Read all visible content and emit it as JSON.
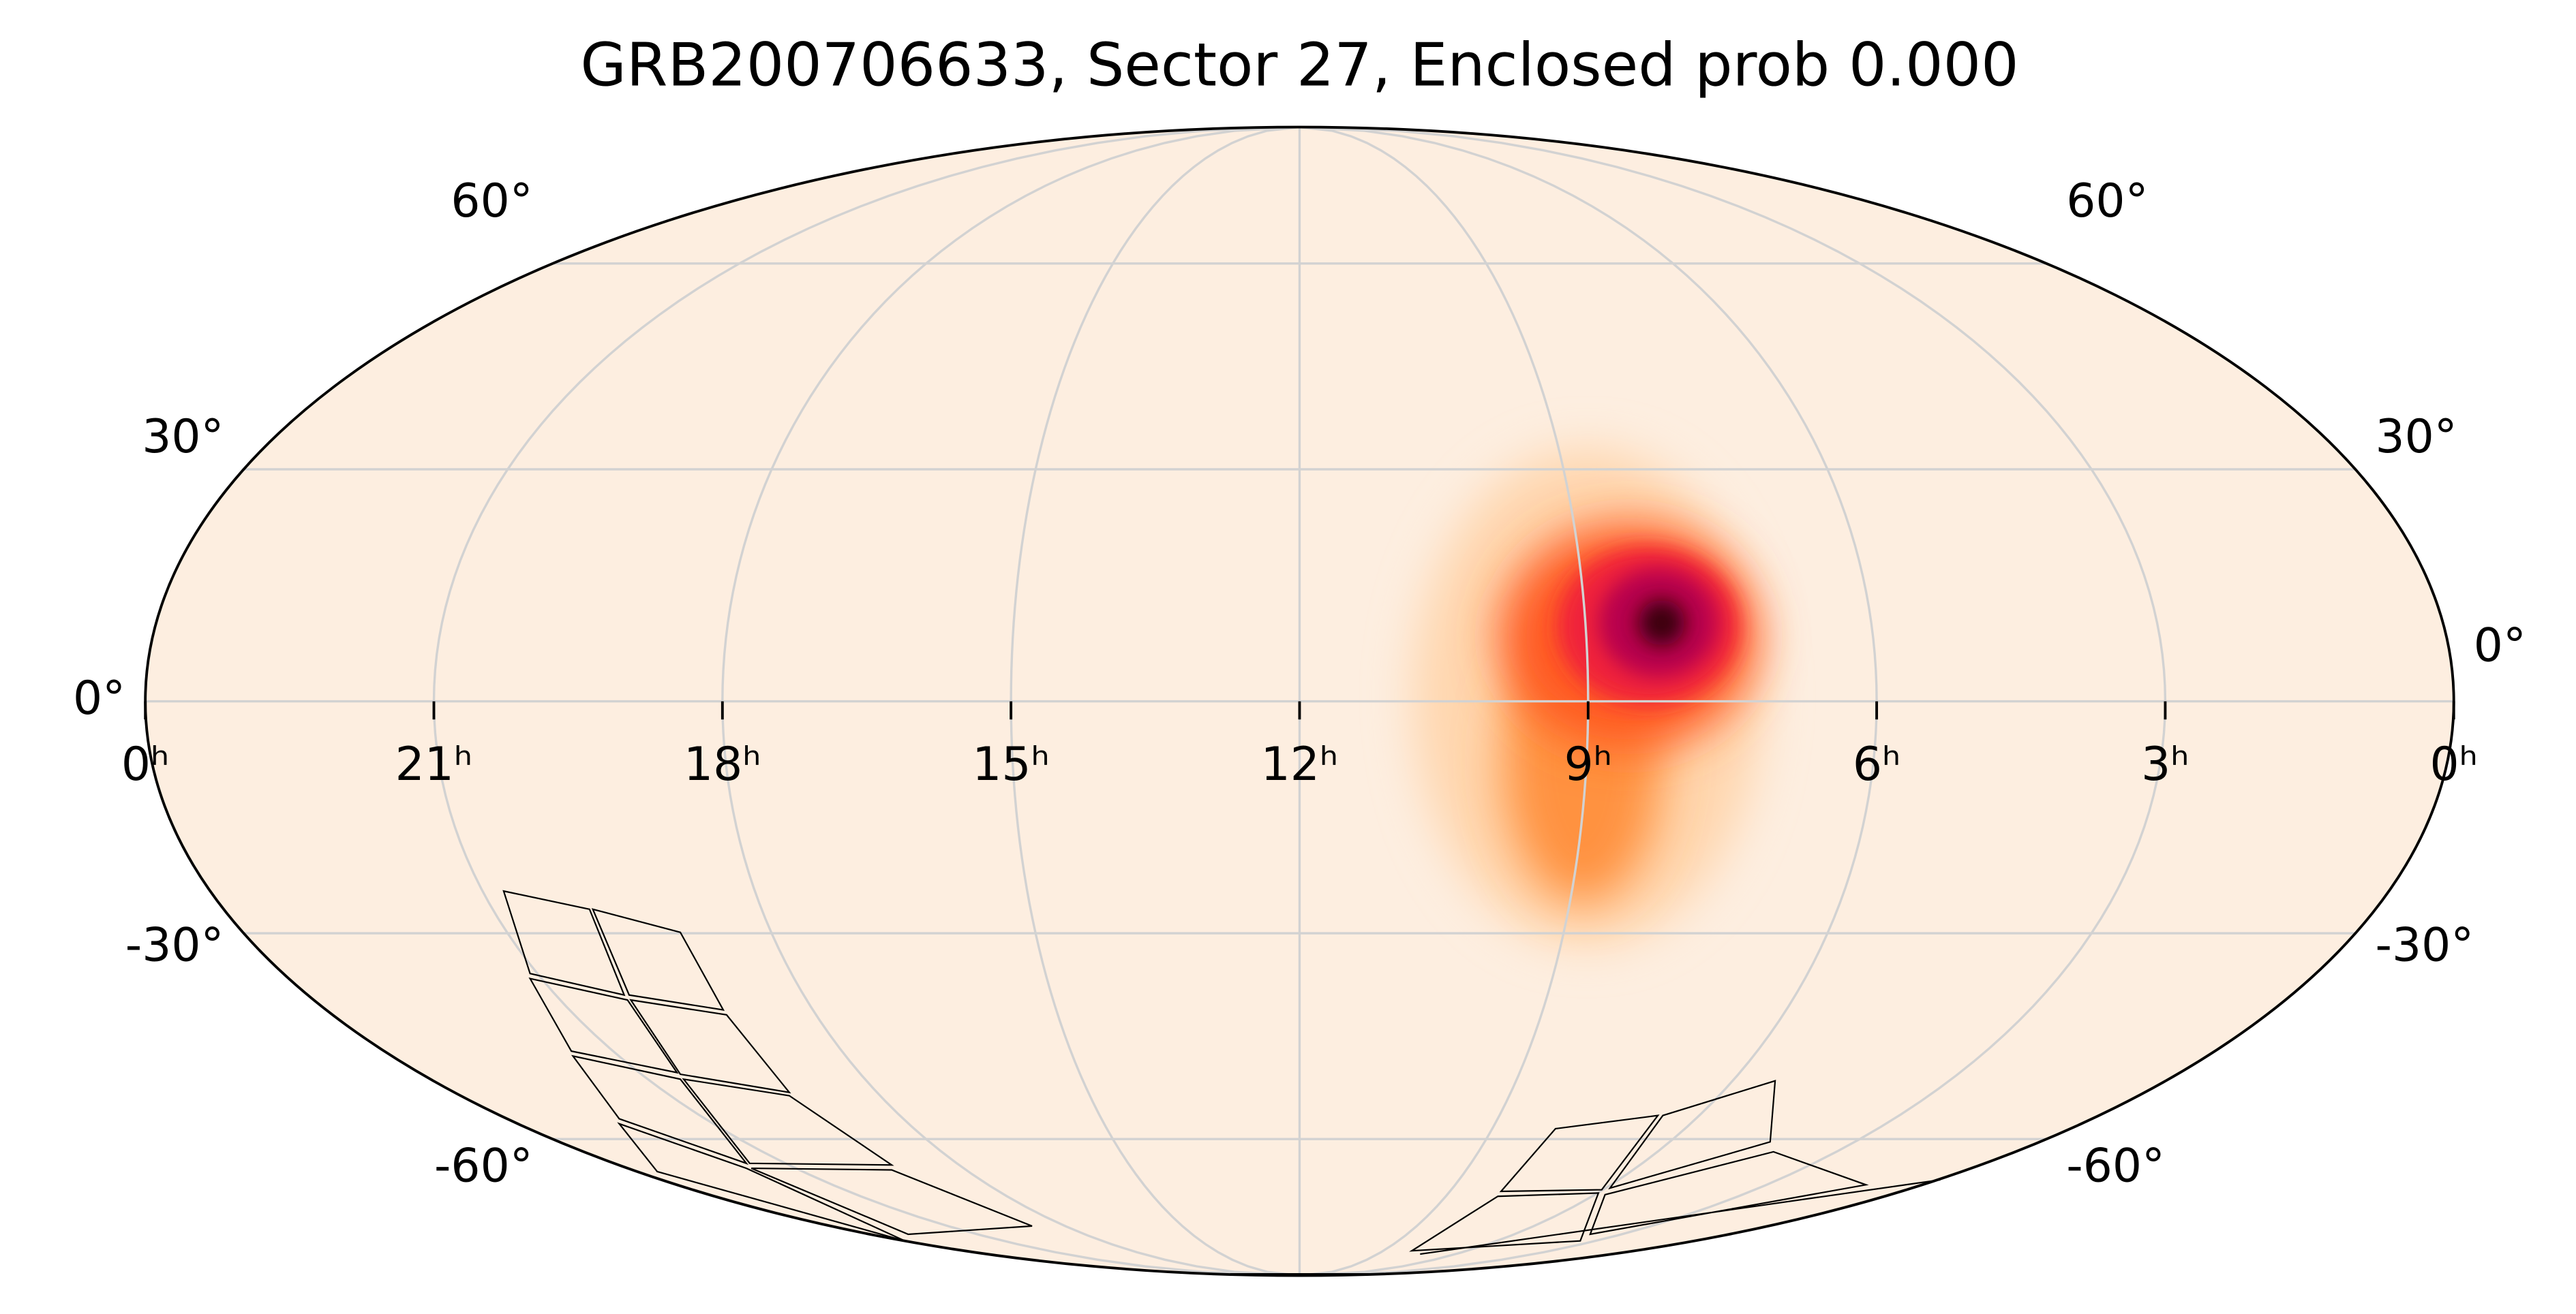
{
  "chart_data": {
    "type": "mollweide",
    "title": "GRB200706633, Sector 27, Enclosed prob 0.000",
    "xlim": [
      24,
      0
    ],
    "ylim": [
      -90,
      90
    ],
    "xticks": [
      {
        "value": 24,
        "label": "0ʰ"
      },
      {
        "value": 21,
        "label": "21ʰ"
      },
      {
        "value": 18,
        "label": "18ʰ"
      },
      {
        "value": 15,
        "label": "15ʰ"
      },
      {
        "value": 12,
        "label": "12ʰ"
      },
      {
        "value": 9,
        "label": "9ʰ"
      },
      {
        "value": 6,
        "label": "6ʰ"
      },
      {
        "value": 3,
        "label": "3ʰ"
      },
      {
        "value": 0,
        "label": "0ʰ"
      }
    ],
    "yticks": [
      {
        "value": 60,
        "label": "60°"
      },
      {
        "value": 30,
        "label": "30°"
      },
      {
        "value": 0,
        "label": "0°"
      },
      {
        "value": -30,
        "label": "-30°"
      },
      {
        "value": -60,
        "label": "-60°"
      }
    ],
    "grid": true,
    "source": {
      "ra": 8.2,
      "dec": 10
    }
  }
}
